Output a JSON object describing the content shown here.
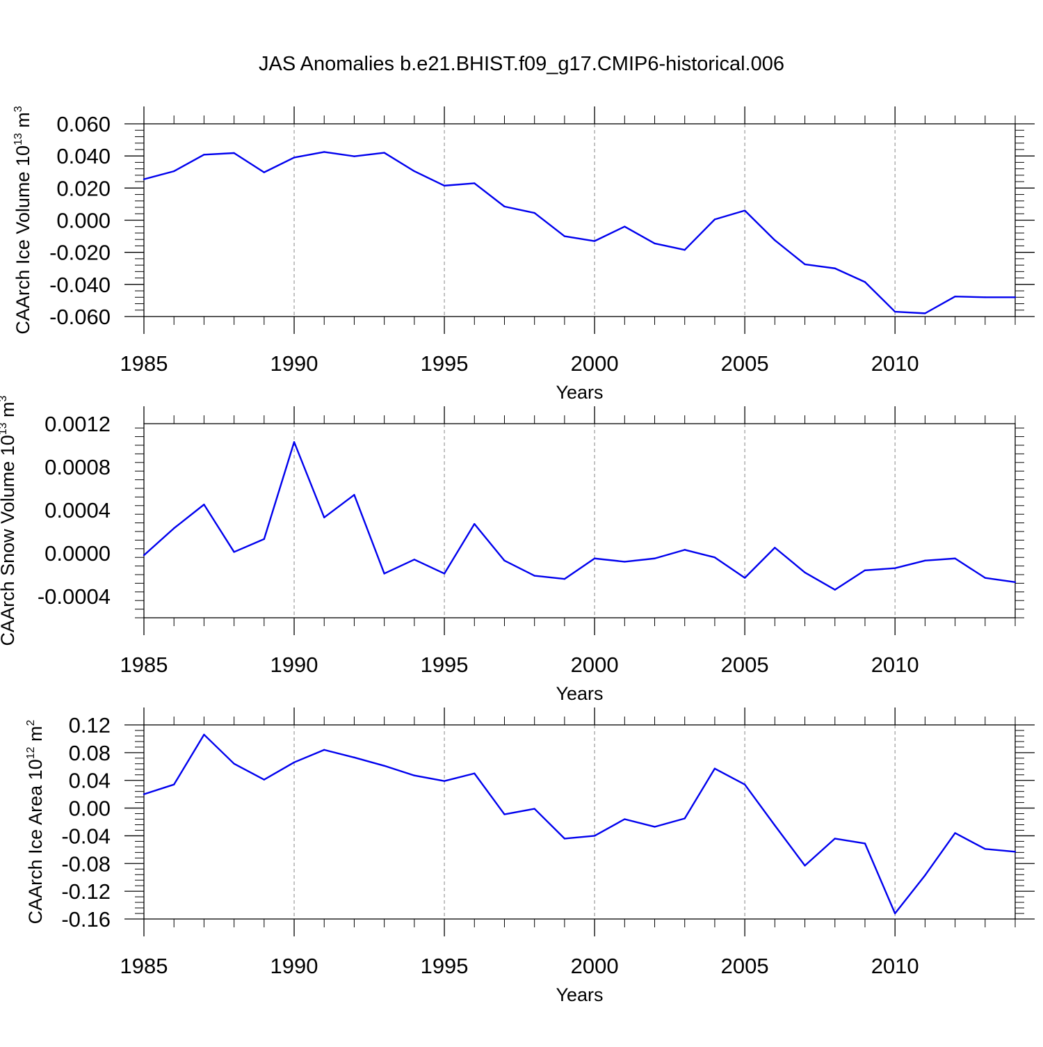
{
  "title": "JAS Anomalies b.e21.BHIST.f09_g17.CMIP6-historical.006",
  "chart_data": [
    {
      "type": "line",
      "ylabel": "CAArch Ice Volume 10",
      "ylabel_exp": "13",
      "ylabel_unit": " m",
      "ylabel_unit_exp": "3",
      "xlabel": "Years",
      "xlim": [
        1985,
        2014
      ],
      "ylim": [
        -0.06,
        0.06
      ],
      "xticks": [
        1985,
        1990,
        1995,
        2000,
        2005,
        2010
      ],
      "xtick_labels": [
        "1985",
        "1990",
        "1995",
        "2000",
        "2005",
        "2010"
      ],
      "yticks": [
        -0.06,
        -0.04,
        -0.02,
        0.0,
        0.02,
        0.04,
        0.06
      ],
      "ytick_labels": [
        "-0.060",
        "-0.040",
        "-0.020",
        "0.000",
        "0.020",
        "0.040",
        "0.060"
      ],
      "grid_x": "dashed at major ticks",
      "line_color": "#0000ee",
      "x": [
        1985,
        1986,
        1987,
        1988,
        1989,
        1990,
        1991,
        1992,
        1993,
        1994,
        1995,
        1996,
        1997,
        1998,
        1999,
        2000,
        2001,
        2002,
        2003,
        2004,
        2005,
        2006,
        2007,
        2008,
        2009,
        2010,
        2011,
        2012,
        2013,
        2014
      ],
      "values": [
        0.0255,
        0.0305,
        0.0408,
        0.0418,
        0.0298,
        0.039,
        0.0425,
        0.0398,
        0.042,
        0.0305,
        0.0215,
        0.023,
        0.0085,
        0.0045,
        -0.01,
        -0.013,
        -0.004,
        -0.0145,
        -0.0185,
        0.0005,
        0.006,
        -0.0125,
        -0.0275,
        -0.03,
        -0.0385,
        -0.057,
        -0.058,
        -0.0475,
        -0.048,
        -0.048
      ]
    },
    {
      "type": "line",
      "ylabel": "CAArch Snow Volume 10",
      "ylabel_exp": "13",
      "ylabel_unit": " m",
      "ylabel_unit_exp": "3",
      "xlabel": "Years",
      "xlim": [
        1985,
        2014
      ],
      "ylim": [
        -0.0006,
        0.0012
      ],
      "xticks": [
        1985,
        1990,
        1995,
        2000,
        2005,
        2010
      ],
      "xtick_labels": [
        "1985",
        "1990",
        "1995",
        "2000",
        "2005",
        "2010"
      ],
      "yticks": [
        -0.0004,
        0.0,
        0.0004,
        0.0008,
        0.0012
      ],
      "ytick_labels": [
        "-0.0004",
        "0.0000",
        "0.0004",
        "0.0008",
        "0.0012"
      ],
      "grid_x": "dashed at major ticks",
      "line_color": "#0000ee",
      "x": [
        1985,
        1986,
        1987,
        1988,
        1989,
        1990,
        1991,
        1992,
        1993,
        1994,
        1995,
        1996,
        1997,
        1998,
        1999,
        2000,
        2001,
        2002,
        2003,
        2004,
        2005,
        2006,
        2007,
        2008,
        2009,
        2010,
        2011,
        2012,
        2013,
        2014
      ],
      "values": [
        -2e-05,
        0.00023,
        0.00045,
        1e-05,
        0.00013,
        0.00103,
        0.00033,
        0.00054,
        -0.00019,
        -6e-05,
        -0.00019,
        0.00027,
        -7e-05,
        -0.00021,
        -0.00024,
        -5e-05,
        -8e-05,
        -5e-05,
        3e-05,
        -4e-05,
        -0.00023,
        5e-05,
        -0.00018,
        -0.00034,
        -0.00016,
        -0.00014,
        -7e-05,
        -5e-05,
        -0.00023,
        -0.00027
      ]
    },
    {
      "type": "line",
      "ylabel": "CAArch Ice Area 10",
      "ylabel_exp": "12",
      "ylabel_unit": " m",
      "ylabel_unit_exp": "2",
      "xlabel": "Years",
      "xlim": [
        1985,
        2014
      ],
      "ylim": [
        -0.16,
        0.12
      ],
      "xticks": [
        1985,
        1990,
        1995,
        2000,
        2005,
        2010
      ],
      "xtick_labels": [
        "1985",
        "1990",
        "1995",
        "2000",
        "2005",
        "2010"
      ],
      "yticks": [
        -0.16,
        -0.12,
        -0.08,
        -0.04,
        0.0,
        0.04,
        0.08,
        0.12
      ],
      "ytick_labels": [
        "-0.16",
        "-0.12",
        "-0.08",
        "-0.04",
        "0.00",
        "0.04",
        "0.08",
        "0.12"
      ],
      "grid_x": "dashed at major ticks",
      "line_color": "#0000ee",
      "x": [
        1985,
        1986,
        1987,
        1988,
        1989,
        1990,
        1991,
        1992,
        1993,
        1994,
        1995,
        1996,
        1997,
        1998,
        1999,
        2000,
        2001,
        2002,
        2003,
        2004,
        2005,
        2006,
        2007,
        2008,
        2009,
        2010,
        2011,
        2012,
        2013,
        2014
      ],
      "values": [
        0.02,
        0.034,
        0.106,
        0.064,
        0.041,
        0.066,
        0.084,
        0.073,
        0.061,
        0.047,
        0.039,
        0.05,
        -0.009,
        -0.001,
        -0.044,
        -0.04,
        -0.016,
        -0.027,
        -0.015,
        0.057,
        0.034,
        -0.025,
        -0.083,
        -0.044,
        -0.051,
        -0.152,
        -0.097,
        -0.036,
        -0.059,
        -0.063
      ]
    }
  ]
}
